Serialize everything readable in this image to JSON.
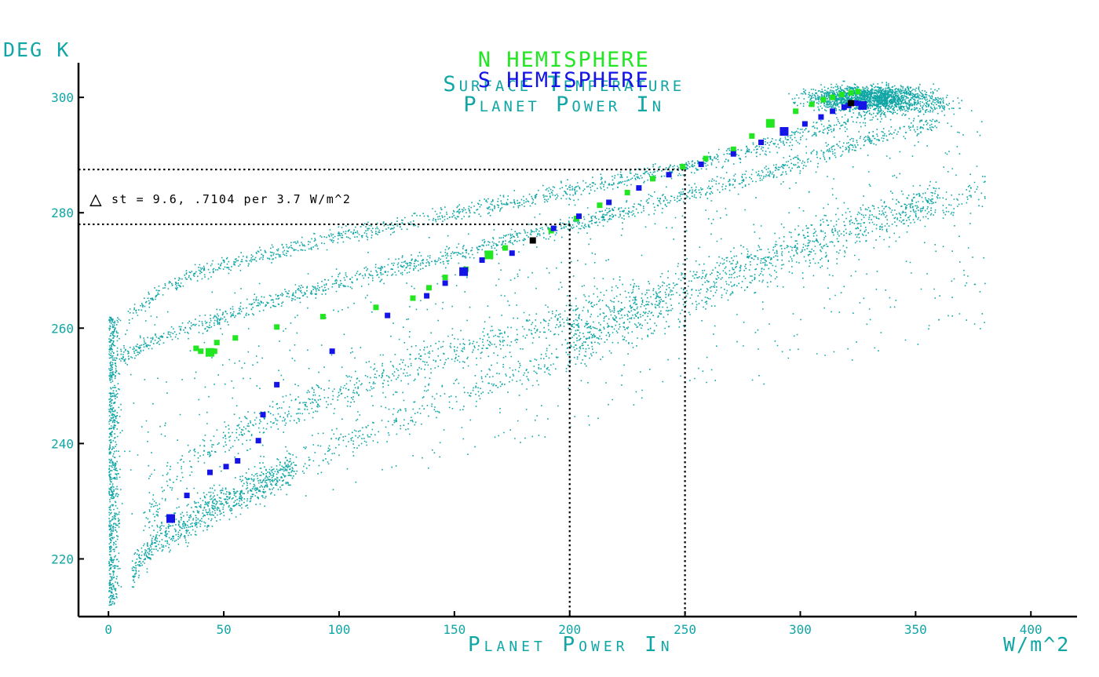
{
  "chart_data": {
    "type": "scatter",
    "title_lines": [
      {
        "series_name": "N HEMISPHERE",
        "series_color": "#22e622",
        "metric": "Surface Temperature",
        "metric_color": "#11a6a6"
      },
      {
        "series_name": "S HEMISPHERE",
        "series_color": "#1414e6",
        "metric": "Planet Power In",
        "metric_color": "#11a6a6"
      }
    ],
    "ylabel": "DEG K",
    "xlabel": "Planet Power In",
    "xunit": "W/m^2",
    "xlim": [
      -13,
      420
    ],
    "ylim": [
      210,
      306
    ],
    "x_ticks": [
      0,
      50,
      100,
      150,
      200,
      250,
      300,
      350,
      400
    ],
    "y_ticks": [
      220,
      240,
      260,
      280,
      300
    ],
    "annotation": {
      "symbol": "△",
      "text": "st = 9.6, .7104 per 3.7 W/m^2",
      "ref_lines": [
        {
          "y": 287.5,
          "x": 250
        },
        {
          "y": 278.0,
          "x": 200
        }
      ]
    },
    "colors": {
      "cloud": "#11a6a6",
      "north": "#22e622",
      "south": "#1414e6",
      "axis": "#000000"
    },
    "series": [
      {
        "name": "N HEMISPHERE",
        "color": "#22e622",
        "x": [
          38,
          40,
          44,
          46,
          47,
          55,
          73,
          93,
          116,
          132,
          139,
          146,
          155,
          165,
          172,
          192,
          203,
          213,
          225,
          236,
          249,
          259,
          271,
          279,
          287,
          298,
          305,
          310,
          314,
          318,
          322,
          325
        ],
        "y": [
          256.5,
          256,
          255.8,
          256,
          257.5,
          258.3,
          260.2,
          262,
          263.6,
          265.2,
          267,
          268.8,
          270.2,
          272.7,
          273.9,
          276.9,
          279,
          281.3,
          283.5,
          285.9,
          288,
          289.4,
          291,
          293.3,
          295.5,
          297.6,
          298.8,
          299.6,
          300,
          300.5,
          300.8,
          301
        ]
      },
      {
        "name": "S HEMISPHERE",
        "color": "#1414e6",
        "x": [
          27,
          34,
          44,
          51,
          56,
          65,
          67,
          73,
          97,
          121,
          138,
          146,
          154,
          162,
          175,
          193,
          204,
          217,
          230,
          243,
          257,
          271,
          283,
          293,
          302,
          309,
          314,
          319,
          321,
          324,
          327
        ],
        "y": [
          227,
          231,
          235,
          236,
          237,
          240.5,
          245,
          250.2,
          256,
          262.2,
          265.6,
          267.8,
          269.8,
          271.8,
          273,
          277.3,
          279.4,
          281.8,
          284.3,
          286.6,
          288.4,
          290.2,
          292.2,
          294.1,
          295.4,
          296.6,
          297.6,
          298.3,
          298.6,
          299,
          298.6
        ]
      }
    ],
    "highlight_points": [
      {
        "x": 184,
        "y": 275.2,
        "color": "#000000"
      },
      {
        "x": 322,
        "y": 299,
        "color": "#000000"
      }
    ],
    "cloud_branches": [
      {
        "x": [
          8,
          20,
          40,
          70,
          100,
          150,
          200,
          250,
          280,
          310,
          340,
          370
        ],
        "y": [
          262,
          266,
          270,
          273,
          276,
          280,
          284,
          288,
          291,
          295,
          298,
          299
        ]
      },
      {
        "x": [
          5,
          20,
          50,
          80,
          120,
          160,
          200,
          250,
          300,
          330,
          360
        ],
        "y": [
          255,
          258,
          262,
          266,
          270,
          274,
          278,
          283,
          289,
          293,
          296
        ]
      },
      {
        "x": [
          15,
          30,
          60,
          100,
          150,
          200,
          230
        ],
        "y": [
          226,
          236,
          243,
          249,
          256,
          262,
          266
        ]
      },
      {
        "x": [
          60,
          100,
          150,
          200,
          250,
          300,
          350,
          380
        ],
        "y": [
          232,
          240,
          248,
          256,
          264,
          272,
          280,
          284
        ]
      },
      {
        "x": [
          200,
          240,
          280,
          320,
          360
        ],
        "y": [
          258,
          266,
          272,
          278,
          283
        ]
      },
      {
        "x": [
          10,
          20,
          40,
          60,
          80
        ],
        "y": [
          218,
          223,
          228,
          232,
          236
        ]
      }
    ],
    "cloud_cluster": {
      "x": [
        295,
        365
      ],
      "y": [
        296,
        304
      ]
    }
  }
}
